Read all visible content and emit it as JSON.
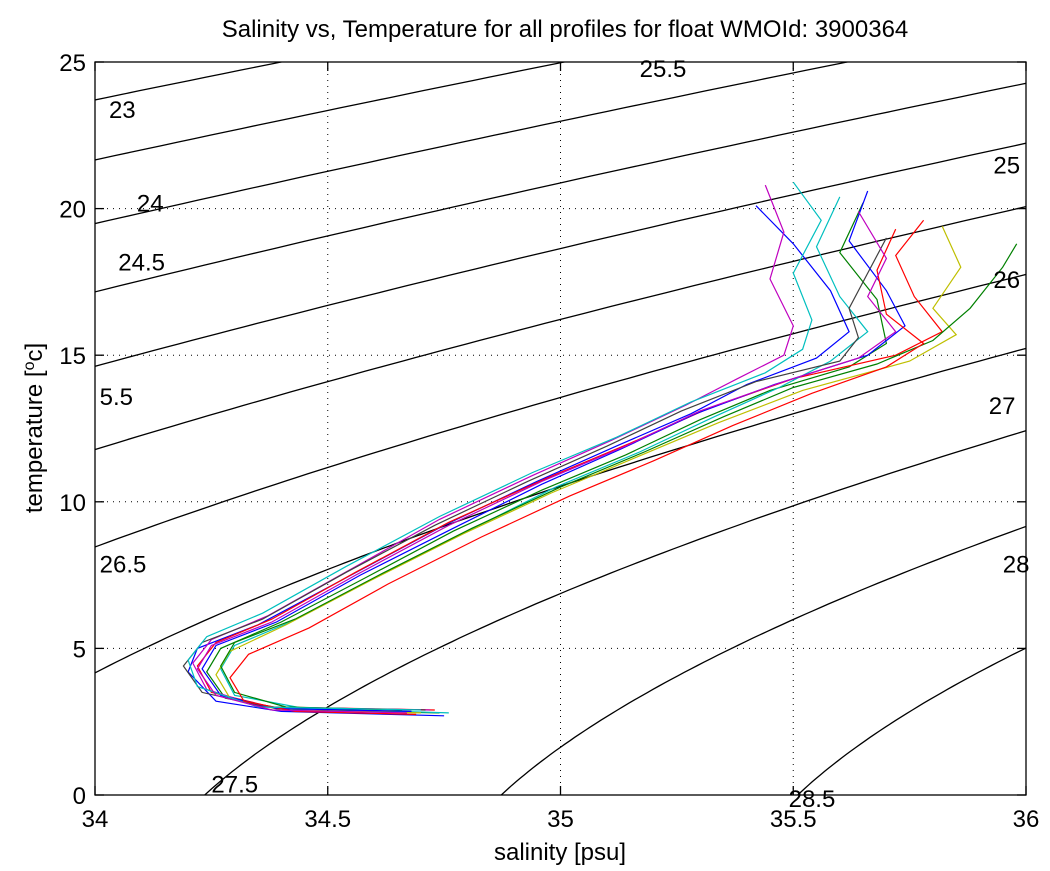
{
  "chart_data": {
    "type": "line",
    "title": "Salinity vs, Temperature for all profiles for float WMOId: 3900364",
    "xlabel": "salinity [psu]",
    "ylabel": "temperature [",
    "ylabel_sup": "o",
    "ylabel_end": "c]",
    "xlim": [
      34,
      36
    ],
    "ylim": [
      0,
      25
    ],
    "x_ticks": [
      34,
      34.5,
      35,
      35.5,
      36
    ],
    "x_tick_labels": [
      "34",
      "34.5",
      "35",
      "35.5",
      "36"
    ],
    "y_ticks": [
      0,
      5,
      10,
      15,
      20,
      25
    ],
    "y_tick_labels": [
      "0",
      "5",
      "10",
      "15",
      "20",
      "25"
    ],
    "grid": true,
    "density_contours": {
      "levels": [
        23,
        23.5,
        24,
        24.5,
        25,
        25.5,
        26,
        26.5,
        27,
        27.5,
        28,
        28.5
      ],
      "labels": [
        {
          "text": "23",
          "s": 34.03,
          "t": 23.4
        },
        {
          "text": "25.5",
          "s": 35.17,
          "t": 24.8
        },
        {
          "text": "24",
          "s": 34.09,
          "t": 20.2
        },
        {
          "text": "25",
          "s": 35.93,
          "t": 21.5
        },
        {
          "text": "24.5",
          "s": 34.05,
          "t": 18.2
        },
        {
          "text": "26",
          "s": 35.93,
          "t": 17.6
        },
        {
          "text": "5.5",
          "s": 34.01,
          "t": 13.6
        },
        {
          "text": "27",
          "s": 35.92,
          "t": 13.3
        },
        {
          "text": "26.5",
          "s": 34.01,
          "t": 7.9
        },
        {
          "text": "28",
          "s": 35.95,
          "t": 7.9
        },
        {
          "text": "27.5",
          "s": 34.25,
          "t": 0.4
        },
        {
          "text": "28.5",
          "s": 35.49,
          "t": -0.1
        }
      ]
    },
    "series": [
      {
        "values": [
          [
            34.75,
            2.7
          ],
          [
            34.4,
            2.85
          ],
          [
            34.26,
            3.2
          ],
          [
            34.2,
            4.2
          ],
          [
            34.22,
            5.0
          ],
          [
            34.35,
            5.8
          ],
          [
            34.55,
            7.5
          ],
          [
            34.75,
            9.2
          ],
          [
            34.95,
            10.7
          ],
          [
            35.12,
            11.9
          ],
          [
            35.28,
            13.0
          ],
          [
            35.4,
            14.0
          ],
          [
            35.55,
            14.9
          ],
          [
            35.62,
            15.8
          ],
          [
            35.58,
            17.2
          ],
          [
            35.5,
            18.8
          ],
          [
            35.42,
            20.1
          ]
        ]
      },
      {
        "values": [
          [
            34.74,
            2.8
          ],
          [
            34.42,
            2.9
          ],
          [
            34.28,
            3.3
          ],
          [
            34.24,
            4.2
          ],
          [
            34.27,
            5.0
          ],
          [
            34.4,
            5.9
          ],
          [
            34.58,
            7.4
          ],
          [
            34.77,
            9.0
          ],
          [
            34.96,
            10.4
          ],
          [
            35.14,
            11.6
          ],
          [
            35.3,
            12.8
          ],
          [
            35.45,
            13.8
          ],
          [
            35.62,
            14.6
          ],
          [
            35.7,
            15.4
          ],
          [
            35.68,
            16.9
          ],
          [
            35.6,
            18.5
          ],
          [
            35.65,
            20.2
          ]
        ]
      },
      {
        "values": [
          [
            34.73,
            2.9
          ],
          [
            34.38,
            3.0
          ],
          [
            34.25,
            3.5
          ],
          [
            34.22,
            4.4
          ],
          [
            34.26,
            5.2
          ],
          [
            34.38,
            6.0
          ],
          [
            34.56,
            7.6
          ],
          [
            34.76,
            9.3
          ],
          [
            34.97,
            10.8
          ],
          [
            35.15,
            12.0
          ],
          [
            35.32,
            13.2
          ],
          [
            35.5,
            14.2
          ],
          [
            35.72,
            15.0
          ],
          [
            35.82,
            15.8
          ],
          [
            35.76,
            17.0
          ],
          [
            35.72,
            18.4
          ],
          [
            35.78,
            19.6
          ]
        ]
      },
      {
        "values": [
          [
            34.76,
            2.8
          ],
          [
            34.45,
            2.95
          ],
          [
            34.3,
            3.4
          ],
          [
            34.27,
            4.3
          ],
          [
            34.3,
            5.1
          ],
          [
            34.42,
            5.9
          ],
          [
            34.6,
            7.4
          ],
          [
            34.8,
            9.0
          ],
          [
            34.99,
            10.5
          ],
          [
            35.17,
            11.7
          ],
          [
            35.33,
            12.9
          ],
          [
            35.47,
            13.9
          ],
          [
            35.58,
            14.8
          ],
          [
            35.66,
            15.8
          ],
          [
            35.6,
            17.0
          ],
          [
            35.55,
            18.7
          ],
          [
            35.6,
            20.4
          ]
        ]
      },
      {
        "values": [
          [
            34.72,
            2.9
          ],
          [
            34.36,
            3.0
          ],
          [
            34.24,
            3.6
          ],
          [
            34.21,
            4.5
          ],
          [
            34.25,
            5.3
          ],
          [
            34.37,
            6.1
          ],
          [
            34.55,
            7.7
          ],
          [
            34.74,
            9.4
          ],
          [
            34.94,
            10.9
          ],
          [
            35.11,
            12.1
          ],
          [
            35.27,
            13.3
          ],
          [
            35.38,
            14.2
          ],
          [
            35.48,
            15.0
          ],
          [
            35.5,
            16.0
          ],
          [
            35.45,
            17.6
          ],
          [
            35.48,
            19.2
          ],
          [
            35.44,
            20.8
          ]
        ]
      },
      {
        "values": [
          [
            34.7,
            2.8
          ],
          [
            34.4,
            2.9
          ],
          [
            34.29,
            3.3
          ],
          [
            34.26,
            4.1
          ],
          [
            34.29,
            4.9
          ],
          [
            34.41,
            5.8
          ],
          [
            34.59,
            7.3
          ],
          [
            34.79,
            8.9
          ],
          [
            34.98,
            10.3
          ],
          [
            35.16,
            11.5
          ],
          [
            35.34,
            12.7
          ],
          [
            35.52,
            13.8
          ],
          [
            35.75,
            14.8
          ],
          [
            35.85,
            15.7
          ],
          [
            35.8,
            16.6
          ],
          [
            35.86,
            18.0
          ],
          [
            35.82,
            19.4
          ]
        ]
      },
      {
        "values": [
          [
            34.71,
            2.9
          ],
          [
            34.37,
            3.0
          ],
          [
            34.23,
            3.5
          ],
          [
            34.19,
            4.4
          ],
          [
            34.23,
            5.2
          ],
          [
            34.36,
            6.0
          ],
          [
            34.54,
            7.6
          ],
          [
            34.73,
            9.2
          ],
          [
            34.93,
            10.7
          ],
          [
            35.1,
            11.9
          ],
          [
            35.26,
            13.1
          ],
          [
            35.42,
            14.1
          ],
          [
            35.6,
            14.8
          ],
          [
            35.64,
            15.6
          ],
          [
            35.62,
            16.6
          ],
          [
            35.66,
            17.8
          ],
          [
            35.7,
            19.0
          ]
        ]
      },
      {
        "values": [
          [
            34.68,
            2.85
          ],
          [
            34.39,
            2.95
          ],
          [
            34.27,
            3.4
          ],
          [
            34.23,
            4.3
          ],
          [
            34.26,
            5.1
          ],
          [
            34.39,
            5.9
          ],
          [
            34.57,
            7.5
          ],
          [
            34.77,
            9.1
          ],
          [
            34.96,
            10.6
          ],
          [
            35.13,
            11.8
          ],
          [
            35.29,
            13.0
          ],
          [
            35.46,
            14.0
          ],
          [
            35.66,
            15.0
          ],
          [
            35.74,
            16.0
          ],
          [
            35.7,
            17.2
          ],
          [
            35.62,
            18.9
          ],
          [
            35.66,
            20.6
          ]
        ]
      },
      {
        "values": [
          [
            34.66,
            2.9
          ],
          [
            34.41,
            3.0
          ],
          [
            34.3,
            3.5
          ],
          [
            34.27,
            4.4
          ],
          [
            34.3,
            5.2
          ],
          [
            34.43,
            6.0
          ],
          [
            34.61,
            7.5
          ],
          [
            34.81,
            9.1
          ],
          [
            35.0,
            10.5
          ],
          [
            35.18,
            11.7
          ],
          [
            35.35,
            12.9
          ],
          [
            35.5,
            13.9
          ],
          [
            35.68,
            14.7
          ],
          [
            35.8,
            15.5
          ],
          [
            35.88,
            16.6
          ],
          [
            35.95,
            18.0
          ],
          [
            35.98,
            18.8
          ]
        ]
      },
      {
        "values": [
          [
            34.69,
            2.75
          ],
          [
            34.43,
            2.85
          ],
          [
            34.32,
            3.2
          ],
          [
            34.29,
            4.0
          ],
          [
            34.33,
            4.8
          ],
          [
            34.46,
            5.7
          ],
          [
            34.63,
            7.2
          ],
          [
            34.83,
            8.8
          ],
          [
            35.02,
            10.2
          ],
          [
            35.2,
            11.4
          ],
          [
            35.37,
            12.6
          ],
          [
            35.54,
            13.7
          ],
          [
            35.7,
            14.6
          ],
          [
            35.78,
            15.4
          ],
          [
            35.7,
            16.4
          ],
          [
            35.68,
            17.9
          ],
          [
            35.72,
            19.3
          ]
        ]
      },
      {
        "values": [
          [
            34.7,
            2.9
          ],
          [
            34.35,
            3.0
          ],
          [
            34.22,
            3.7
          ],
          [
            34.2,
            4.6
          ],
          [
            34.24,
            5.4
          ],
          [
            34.36,
            6.2
          ],
          [
            34.54,
            7.8
          ],
          [
            34.74,
            9.5
          ],
          [
            34.94,
            11.0
          ],
          [
            35.12,
            12.2
          ],
          [
            35.28,
            13.4
          ],
          [
            35.44,
            14.4
          ],
          [
            35.52,
            15.2
          ],
          [
            35.54,
            16.2
          ],
          [
            35.5,
            17.8
          ],
          [
            35.56,
            19.6
          ],
          [
            35.5,
            20.9
          ]
        ]
      },
      {
        "values": [
          [
            34.67,
            2.8
          ],
          [
            34.38,
            2.9
          ],
          [
            34.26,
            3.4
          ],
          [
            34.22,
            4.3
          ],
          [
            34.25,
            5.1
          ],
          [
            34.38,
            5.9
          ],
          [
            34.56,
            7.5
          ],
          [
            34.76,
            9.2
          ],
          [
            34.96,
            10.7
          ],
          [
            35.14,
            11.9
          ],
          [
            35.3,
            13.1
          ],
          [
            35.48,
            14.1
          ],
          [
            35.64,
            14.9
          ],
          [
            35.72,
            15.8
          ],
          [
            35.66,
            17.0
          ],
          [
            35.7,
            18.3
          ],
          [
            35.64,
            19.9
          ]
        ]
      }
    ]
  }
}
